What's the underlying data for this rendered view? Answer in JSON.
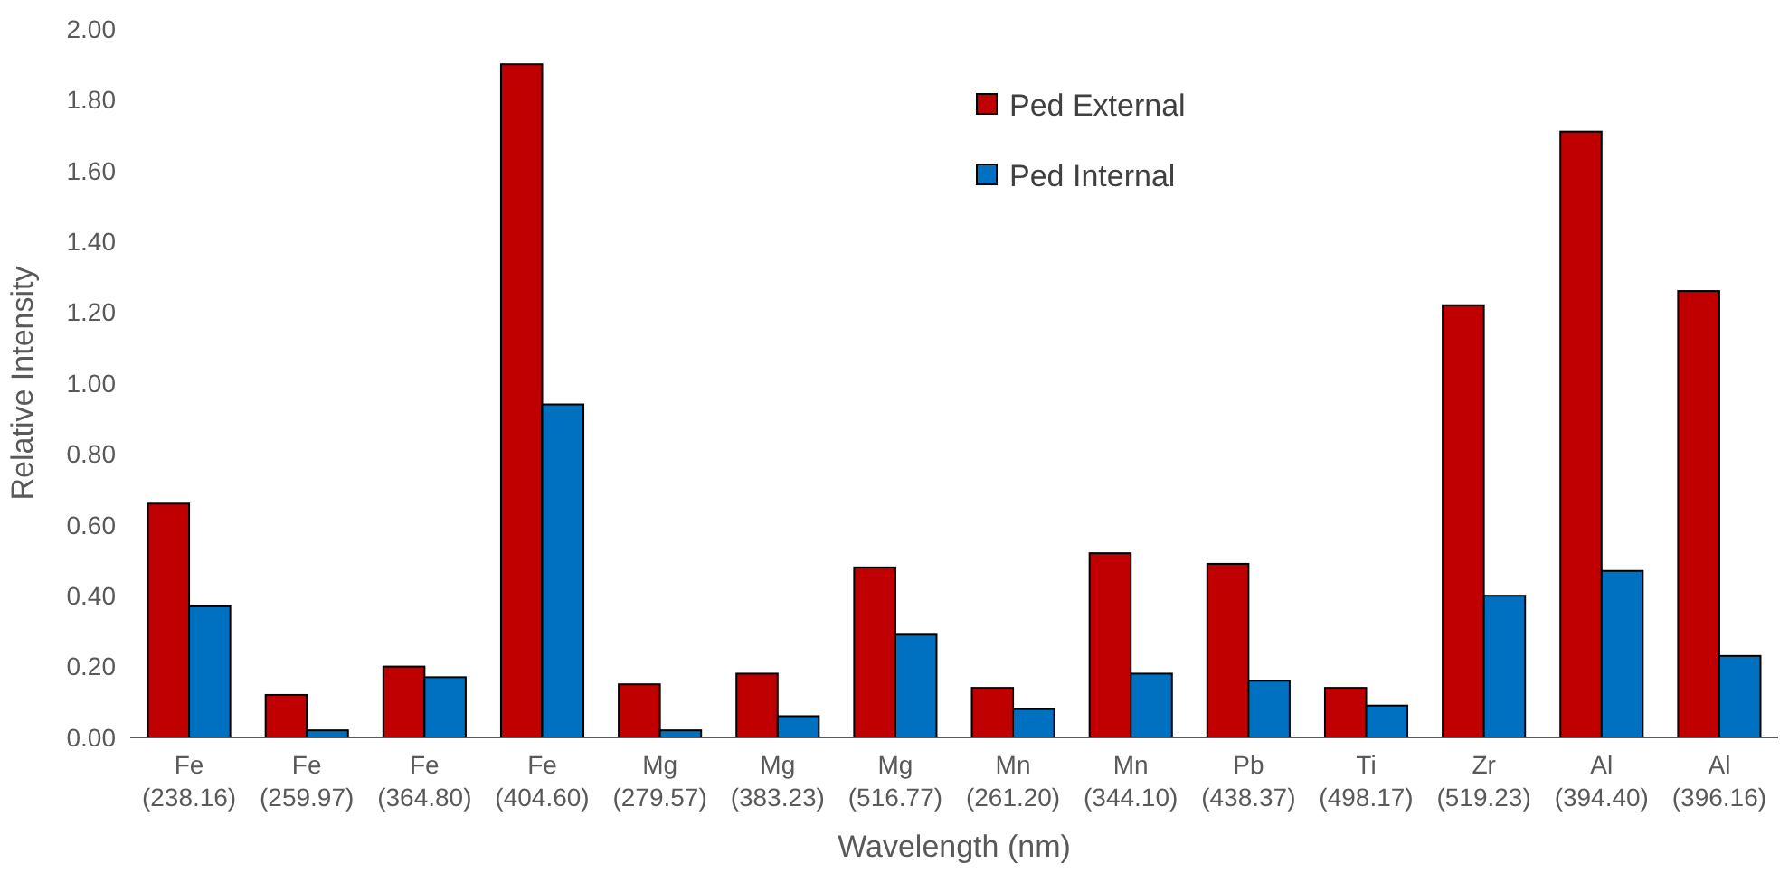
{
  "chart_data": {
    "type": "bar",
    "xlabel": "Wavelength (nm)",
    "ylabel": "Relative Intensity",
    "categories": [
      "Fe\n(238.16)",
      "Fe\n(259.97)",
      "Fe\n(364.80)",
      "Fe\n(404.60)",
      "Mg\n(279.57)",
      "Mg\n(383.23)",
      "Mg\n(516.77)",
      "Mn\n(261.20)",
      "Mn\n(344.10)",
      "Pb\n(438.37)",
      "Ti\n(498.17)",
      "Zr\n(519.23)",
      "Al\n(394.40)",
      "Al\n(396.16)"
    ],
    "series": [
      {
        "name": "Ped External",
        "color": "#c00000",
        "values": [
          0.66,
          0.12,
          0.2,
          1.9,
          0.15,
          0.18,
          0.48,
          0.14,
          0.52,
          0.49,
          0.14,
          1.22,
          1.71,
          1.26
        ]
      },
      {
        "name": "Ped Internal",
        "color": "#0070c0",
        "values": [
          0.37,
          0.02,
          0.17,
          0.94,
          0.02,
          0.06,
          0.29,
          0.08,
          0.18,
          0.16,
          0.09,
          0.4,
          0.47,
          0.23
        ]
      }
    ],
    "ylim": [
      0,
      2
    ],
    "yticks": [
      {
        "value": 0,
        "label": "0.00"
      },
      {
        "value": 0.2,
        "label": "0.20"
      },
      {
        "value": 0.4,
        "label": "0.40"
      },
      {
        "value": 0.6,
        "label": "0.60"
      },
      {
        "value": 0.8,
        "label": "0.80"
      },
      {
        "value": 1,
        "label": "1.00"
      },
      {
        "value": 1.2,
        "label": "1.20"
      },
      {
        "value": 1.4,
        "label": "1.40"
      },
      {
        "value": 1.6,
        "label": "1.60"
      },
      {
        "value": 1.8,
        "label": "1.80"
      },
      {
        "value": 2,
        "label": "2.00"
      }
    ],
    "grid": false,
    "legend": "top right"
  }
}
